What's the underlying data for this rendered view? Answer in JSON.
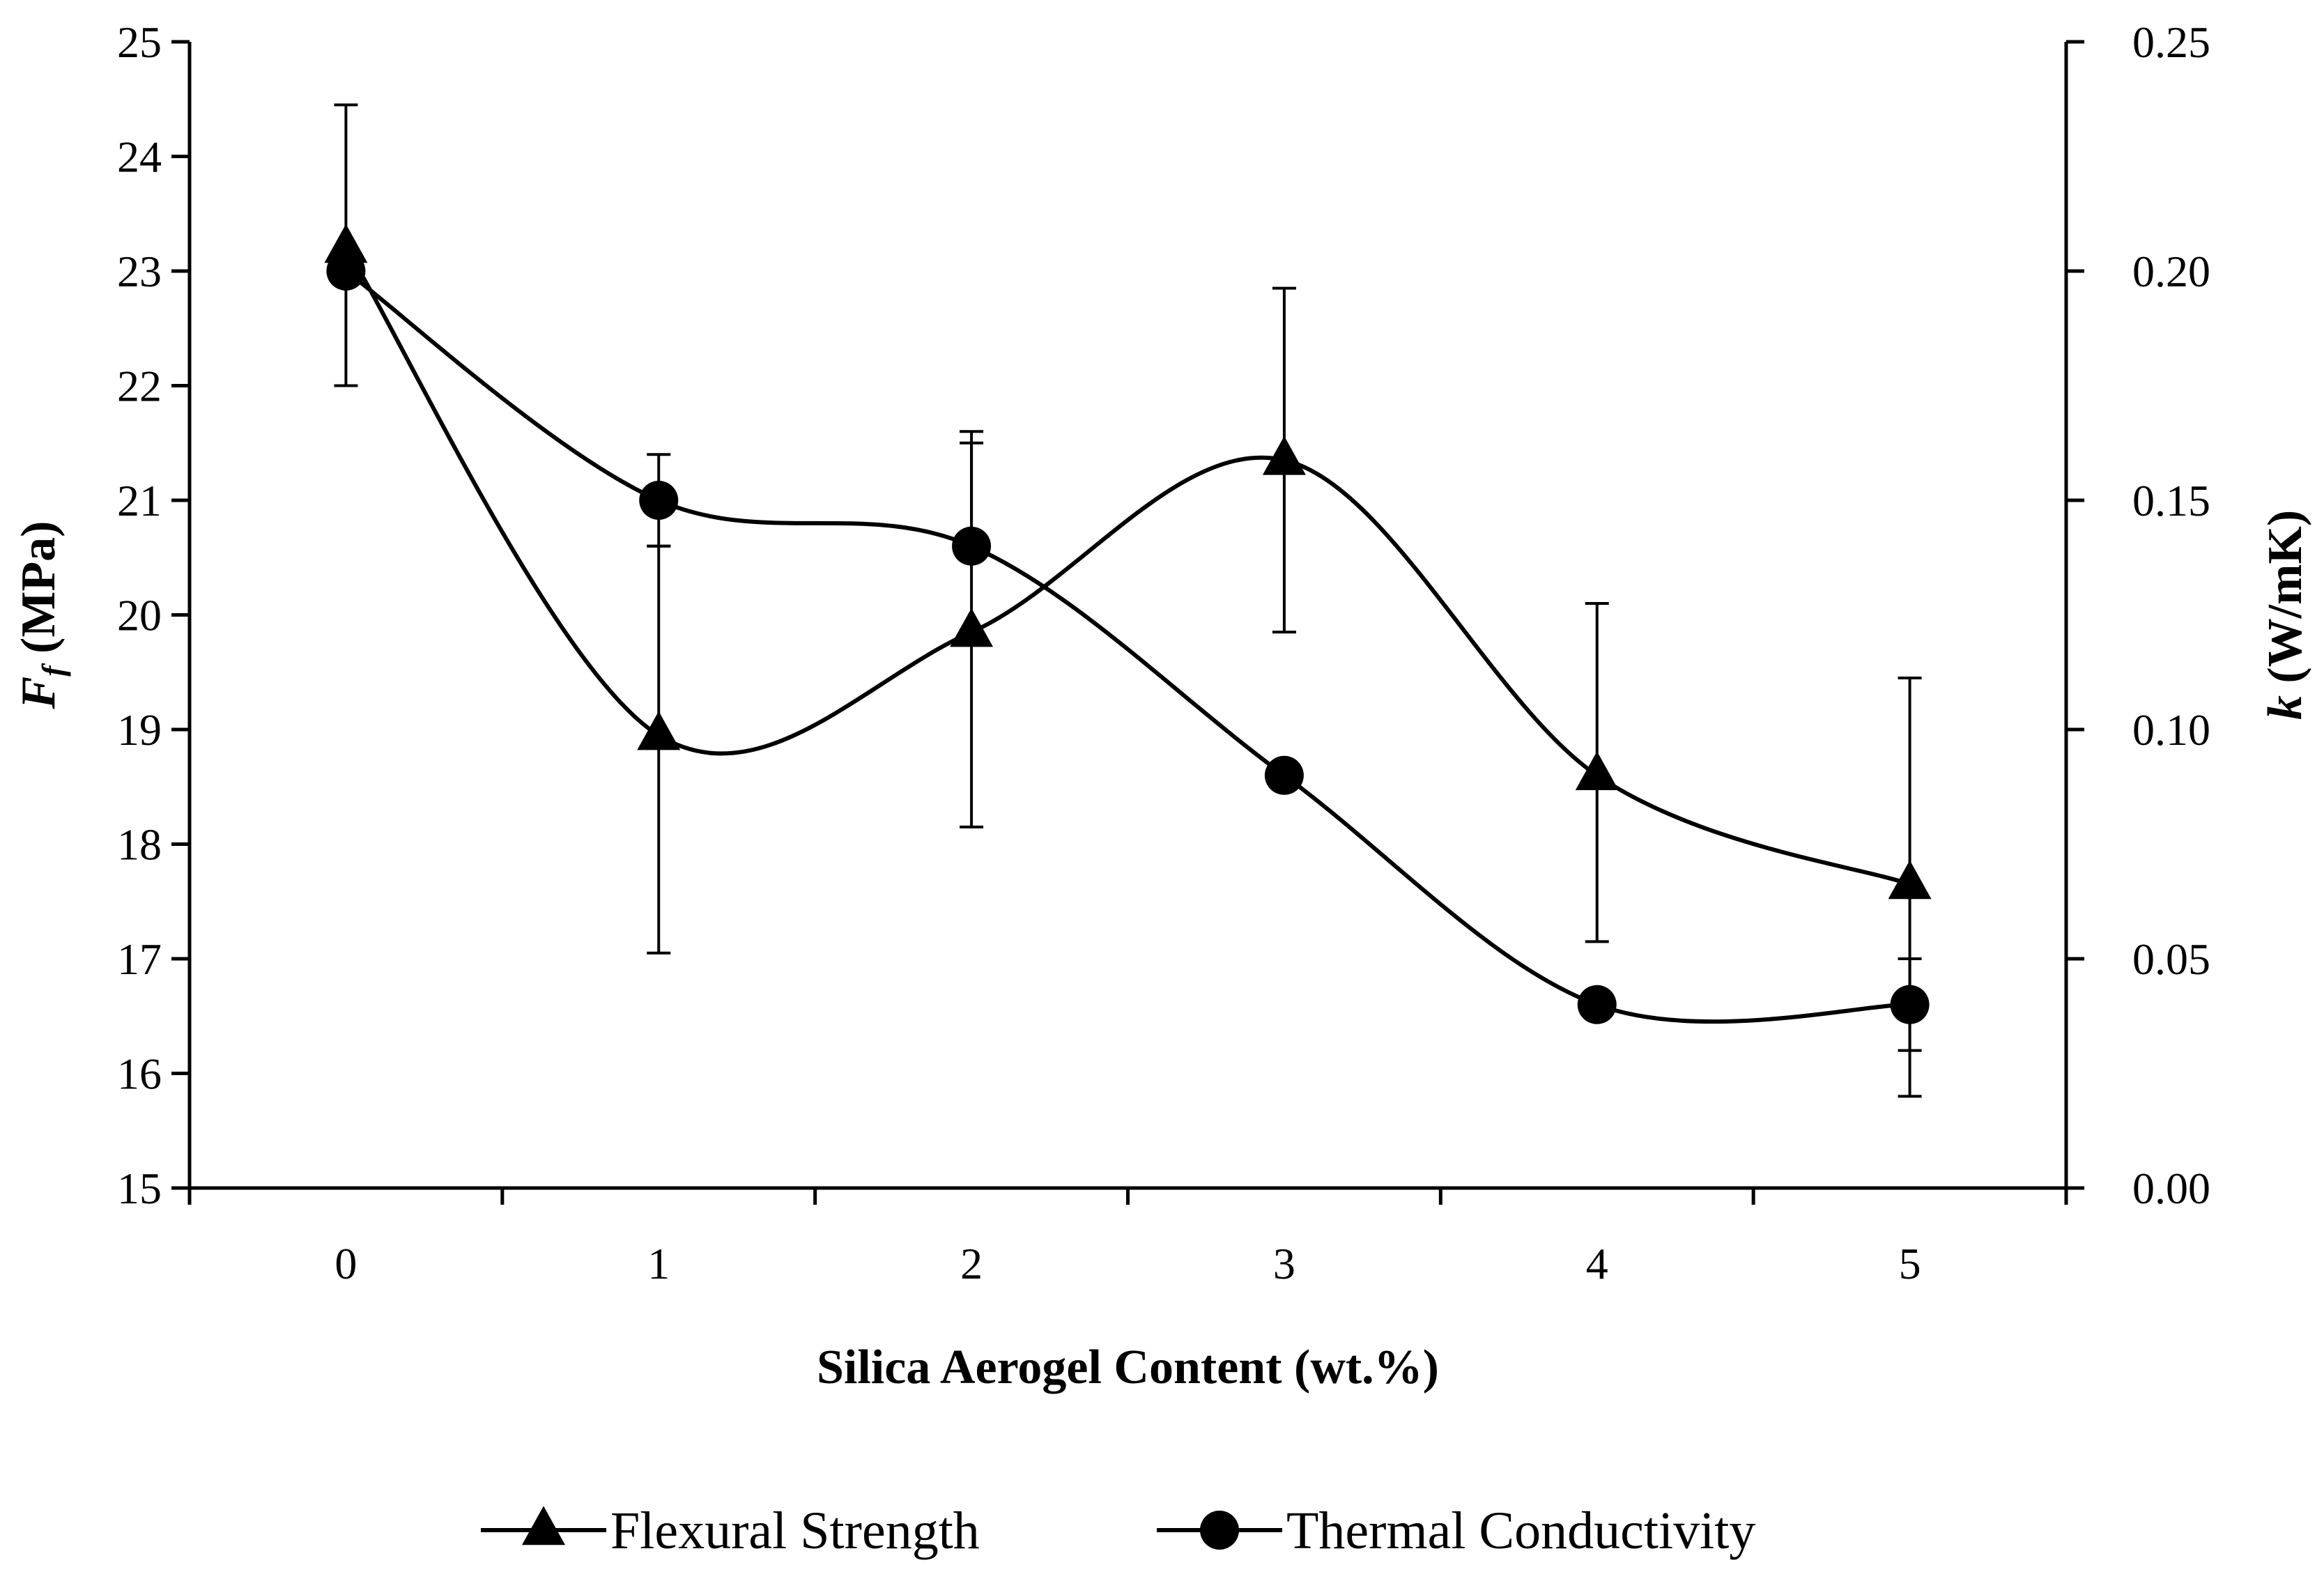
{
  "chart_data": {
    "type": "line",
    "x": [
      0,
      1,
      2,
      3,
      4,
      5
    ],
    "xlabel": "Silica Aerogel Content (wt.%)",
    "xlim": [
      -0.5,
      5.5
    ],
    "x_ticks": [
      "0",
      "1",
      "2",
      "3",
      "4",
      "5"
    ],
    "ylabel_left": {
      "symbol": "F",
      "subscript": "f",
      "unit": " (MPa)"
    },
    "ylim_left": [
      15,
      25
    ],
    "y_ticks_left": [
      "15",
      "16",
      "17",
      "18",
      "19",
      "20",
      "21",
      "22",
      "23",
      "24",
      "25"
    ],
    "ylabel_right": {
      "symbol": "k",
      "unit": " (W/mK)"
    },
    "ylim_right": [
      0,
      0.25
    ],
    "y_ticks_right": [
      "0.00",
      "0.05",
      "0.10",
      "0.15",
      "0.20",
      "0.25"
    ],
    "series": [
      {
        "name": "Flexural Strength",
        "axis": "left",
        "marker": "triangle",
        "values": [
          23.2,
          18.95,
          19.85,
          21.35,
          18.6,
          17.65
        ],
        "error_low": [
          22.0,
          17.05,
          18.15,
          19.85,
          17.15,
          15.8
        ],
        "error_high": [
          24.45,
          20.6,
          21.5,
          22.85,
          20.1,
          19.45
        ]
      },
      {
        "name": "Thermal Conductivity",
        "axis": "right",
        "marker": "circle",
        "values": [
          0.2,
          0.15,
          0.14,
          0.09,
          0.04,
          0.04
        ],
        "error_low": [
          0.2,
          0.14,
          0.14,
          0.09,
          0.04,
          0.03
        ],
        "error_high": [
          0.2,
          0.16,
          0.165,
          0.09,
          0.04,
          0.05
        ]
      }
    ],
    "legend_position": "bottom",
    "grid": false
  },
  "colors": {
    "ink": "#000000",
    "background": "#ffffff"
  }
}
